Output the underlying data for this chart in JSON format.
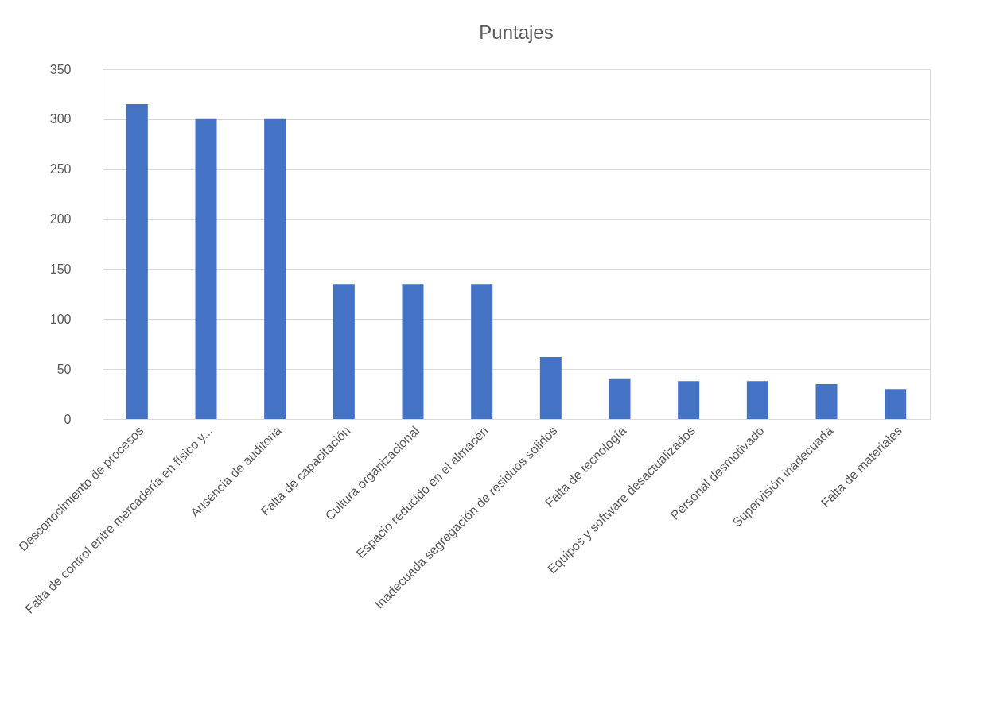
{
  "chart_data": {
    "type": "bar",
    "title": "Puntajes",
    "categories": [
      "Desconocimiento de procesos",
      "Falta de control entre mercadería en físico y...",
      "Ausencia de auditoria",
      "Falta de capacitación",
      "Cultura organizacional",
      "Espacio reducido en el almacén",
      "Inadecuada segregación de residuos solidos",
      "Falta de tecnología",
      "Equipos y software desactualizados",
      "Personal desmotivado",
      "Supervisión inadecuada",
      "Falta de materiales"
    ],
    "values": [
      315,
      300,
      300,
      135,
      135,
      135,
      62,
      40,
      38,
      38,
      35,
      30
    ],
    "color": "#4472c4",
    "ylim": [
      0,
      350
    ],
    "yticks": [
      0,
      50,
      100,
      150,
      200,
      250,
      300,
      350
    ],
    "grid": "y"
  }
}
